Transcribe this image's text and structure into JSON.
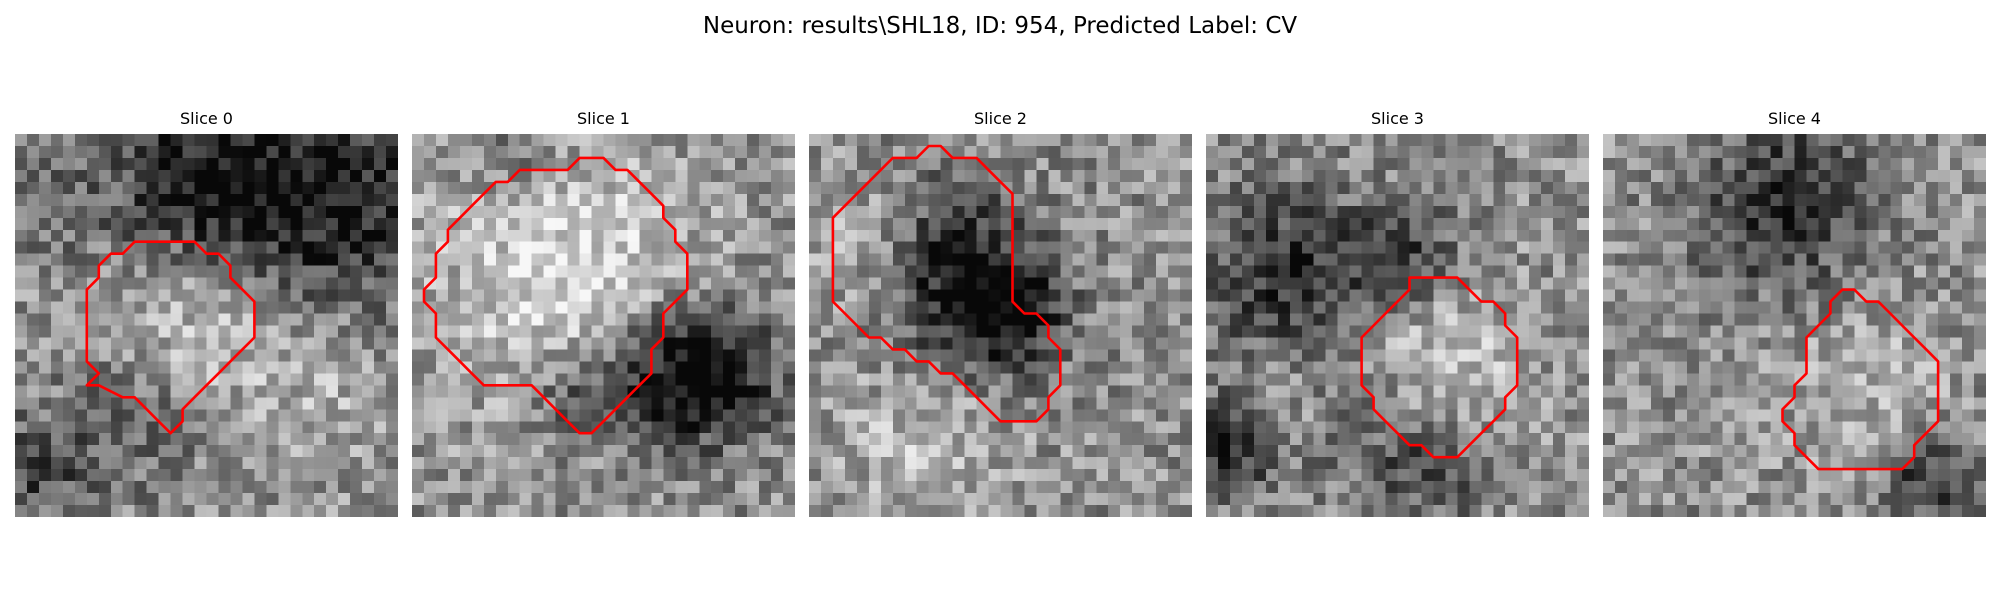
{
  "figure": {
    "title": "Neuron: results\\SHL18, ID: 954, Predicted Label: CV"
  },
  "contour_color": "#ff0000",
  "colormap": "gray",
  "grid_size": 32,
  "slices": [
    {
      "title": "Slice 0",
      "contour": [
        [
          10,
          9
        ],
        [
          15,
          9
        ],
        [
          16,
          10
        ],
        [
          17,
          10
        ],
        [
          18,
          11
        ],
        [
          18,
          12
        ],
        [
          19,
          13
        ],
        [
          20,
          14
        ],
        [
          20,
          17
        ],
        [
          19,
          18
        ],
        [
          18,
          19
        ],
        [
          17,
          20
        ],
        [
          16,
          21
        ],
        [
          15,
          22
        ],
        [
          14,
          23
        ],
        [
          14,
          24
        ],
        [
          13,
          25
        ],
        [
          12,
          24
        ],
        [
          11,
          23
        ],
        [
          10,
          22
        ],
        [
          9,
          22
        ],
        [
          7,
          21
        ],
        [
          6,
          21
        ],
        [
          7,
          20
        ],
        [
          6,
          19
        ],
        [
          6,
          17
        ],
        [
          6,
          13
        ],
        [
          7,
          12
        ],
        [
          7,
          11
        ],
        [
          8,
          10
        ],
        [
          9,
          10
        ]
      ],
      "regions": [
        {
          "x": 16,
          "y": 4,
          "r": 6,
          "a": -0.45
        },
        {
          "x": 28,
          "y": 6,
          "r": 7,
          "a": -0.4
        },
        {
          "x": 3,
          "y": 6,
          "r": 3,
          "a": -0.1
        },
        {
          "x": 15,
          "y": 15,
          "r": 5,
          "a": 0.25
        },
        {
          "x": 26,
          "y": 20,
          "r": 5,
          "a": 0.15
        },
        {
          "x": 10,
          "y": 24,
          "r": 4,
          "a": -0.2
        },
        {
          "x": 2,
          "y": 28,
          "r": 3,
          "a": -0.3
        }
      ]
    },
    {
      "title": "Slice 1",
      "contour": [
        [
          9,
          3
        ],
        [
          13,
          3
        ],
        [
          14,
          2
        ],
        [
          16,
          2
        ],
        [
          17,
          3
        ],
        [
          18,
          3
        ],
        [
          19,
          4
        ],
        [
          20,
          5
        ],
        [
          21,
          6
        ],
        [
          21,
          7
        ],
        [
          22,
          8
        ],
        [
          22,
          9
        ],
        [
          23,
          10
        ],
        [
          23,
          13
        ],
        [
          22,
          14
        ],
        [
          21,
          15
        ],
        [
          21,
          17
        ],
        [
          20,
          18
        ],
        [
          20,
          20
        ],
        [
          19,
          21
        ],
        [
          18,
          22
        ],
        [
          17,
          23
        ],
        [
          16,
          24
        ],
        [
          15,
          25
        ],
        [
          14,
          25
        ],
        [
          13,
          24
        ],
        [
          12,
          23
        ],
        [
          11,
          22
        ],
        [
          10,
          21
        ],
        [
          6,
          21
        ],
        [
          5,
          20
        ],
        [
          4,
          19
        ],
        [
          3,
          18
        ],
        [
          2,
          17
        ],
        [
          2,
          15
        ],
        [
          1,
          14
        ],
        [
          1,
          13
        ],
        [
          2,
          12
        ],
        [
          2,
          10
        ],
        [
          3,
          9
        ],
        [
          3,
          8
        ],
        [
          4,
          7
        ],
        [
          5,
          6
        ],
        [
          6,
          5
        ],
        [
          7,
          4
        ],
        [
          8,
          4
        ]
      ],
      "regions": [
        {
          "x": 13,
          "y": 12,
          "r": 8,
          "a": 0.3
        },
        {
          "x": 22,
          "y": 20,
          "r": 4,
          "a": -0.45
        },
        {
          "x": 26,
          "y": 20,
          "r": 4,
          "a": -0.35
        },
        {
          "x": 14,
          "y": 22,
          "r": 3,
          "a": -0.3
        },
        {
          "x": 8,
          "y": 1,
          "r": 3,
          "a": -0.2
        }
      ]
    },
    {
      "title": "Slice 2",
      "contour": [
        [
          12,
          2
        ],
        [
          14,
          2
        ],
        [
          15,
          3
        ],
        [
          16,
          4
        ],
        [
          17,
          5
        ],
        [
          17,
          14
        ],
        [
          18,
          15
        ],
        [
          19,
          15
        ],
        [
          20,
          16
        ],
        [
          20,
          17
        ],
        [
          21,
          18
        ],
        [
          21,
          21
        ],
        [
          20,
          22
        ],
        [
          20,
          23
        ],
        [
          19,
          24
        ],
        [
          16,
          24
        ],
        [
          15,
          23
        ],
        [
          14,
          22
        ],
        [
          13,
          21
        ],
        [
          12,
          20
        ],
        [
          11,
          20
        ],
        [
          10,
          19
        ],
        [
          9,
          19
        ],
        [
          8,
          18
        ],
        [
          7,
          18
        ],
        [
          6,
          17
        ],
        [
          5,
          17
        ],
        [
          4,
          16
        ],
        [
          3,
          15
        ],
        [
          2,
          14
        ],
        [
          2,
          7
        ],
        [
          3,
          6
        ],
        [
          4,
          5
        ],
        [
          5,
          4
        ],
        [
          6,
          3
        ],
        [
          7,
          2
        ],
        [
          8,
          2
        ],
        [
          9,
          2
        ],
        [
          10,
          1
        ],
        [
          11,
          1
        ]
      ],
      "regions": [
        {
          "x": 13,
          "y": 14,
          "r": 5,
          "a": -0.4
        },
        {
          "x": 11,
          "y": 8,
          "r": 4,
          "a": -0.2
        },
        {
          "x": 17,
          "y": 15,
          "r": 3,
          "a": -0.35
        },
        {
          "x": 5,
          "y": 9,
          "r": 4,
          "a": 0.2
        },
        {
          "x": 10,
          "y": 25,
          "r": 5,
          "a": 0.2
        }
      ]
    },
    {
      "title": "Slice 3",
      "contour": [
        [
          17,
          12
        ],
        [
          21,
          12
        ],
        [
          22,
          13
        ],
        [
          23,
          14
        ],
        [
          24,
          14
        ],
        [
          25,
          15
        ],
        [
          25,
          16
        ],
        [
          26,
          17
        ],
        [
          26,
          21
        ],
        [
          25,
          22
        ],
        [
          25,
          23
        ],
        [
          24,
          24
        ],
        [
          23,
          25
        ],
        [
          22,
          26
        ],
        [
          21,
          27
        ],
        [
          19,
          27
        ],
        [
          18,
          26
        ],
        [
          17,
          26
        ],
        [
          16,
          25
        ],
        [
          15,
          24
        ],
        [
          14,
          23
        ],
        [
          14,
          22
        ],
        [
          13,
          21
        ],
        [
          13,
          17
        ],
        [
          14,
          16
        ],
        [
          15,
          15
        ],
        [
          16,
          14
        ],
        [
          17,
          13
        ]
      ],
      "regions": [
        {
          "x": 19,
          "y": 20,
          "r": 5,
          "a": 0.25
        },
        {
          "x": 7,
          "y": 12,
          "r": 5,
          "a": -0.4
        },
        {
          "x": 17,
          "y": 10,
          "r": 3,
          "a": -0.3
        },
        {
          "x": 2,
          "y": 26,
          "r": 3,
          "a": -0.4
        },
        {
          "x": 19,
          "y": 28,
          "r": 3,
          "a": -0.3
        },
        {
          "x": 14,
          "y": 24,
          "r": 4,
          "a": -0.2
        },
        {
          "x": 6,
          "y": 22,
          "r": 3,
          "a": 0.15
        }
      ]
    },
    {
      "title": "Slice 4",
      "contour": [
        [
          20,
          13
        ],
        [
          21,
          13
        ],
        [
          22,
          14
        ],
        [
          23,
          14
        ],
        [
          24,
          15
        ],
        [
          25,
          16
        ],
        [
          26,
          17
        ],
        [
          27,
          18
        ],
        [
          28,
          19
        ],
        [
          28,
          24
        ],
        [
          27,
          25
        ],
        [
          26,
          26
        ],
        [
          26,
          27
        ],
        [
          25,
          28
        ],
        [
          18,
          28
        ],
        [
          17,
          27
        ],
        [
          16,
          26
        ],
        [
          16,
          25
        ],
        [
          15,
          24
        ],
        [
          15,
          23
        ],
        [
          16,
          22
        ],
        [
          16,
          21
        ],
        [
          17,
          20
        ],
        [
          17,
          17
        ],
        [
          18,
          16
        ],
        [
          19,
          15
        ],
        [
          19,
          14
        ]
      ],
      "regions": [
        {
          "x": 15,
          "y": 6,
          "r": 5,
          "a": -0.4
        },
        {
          "x": 22,
          "y": 22,
          "r": 5,
          "a": 0.15
        },
        {
          "x": 27,
          "y": 29,
          "r": 3,
          "a": -0.35
        }
      ]
    }
  ]
}
